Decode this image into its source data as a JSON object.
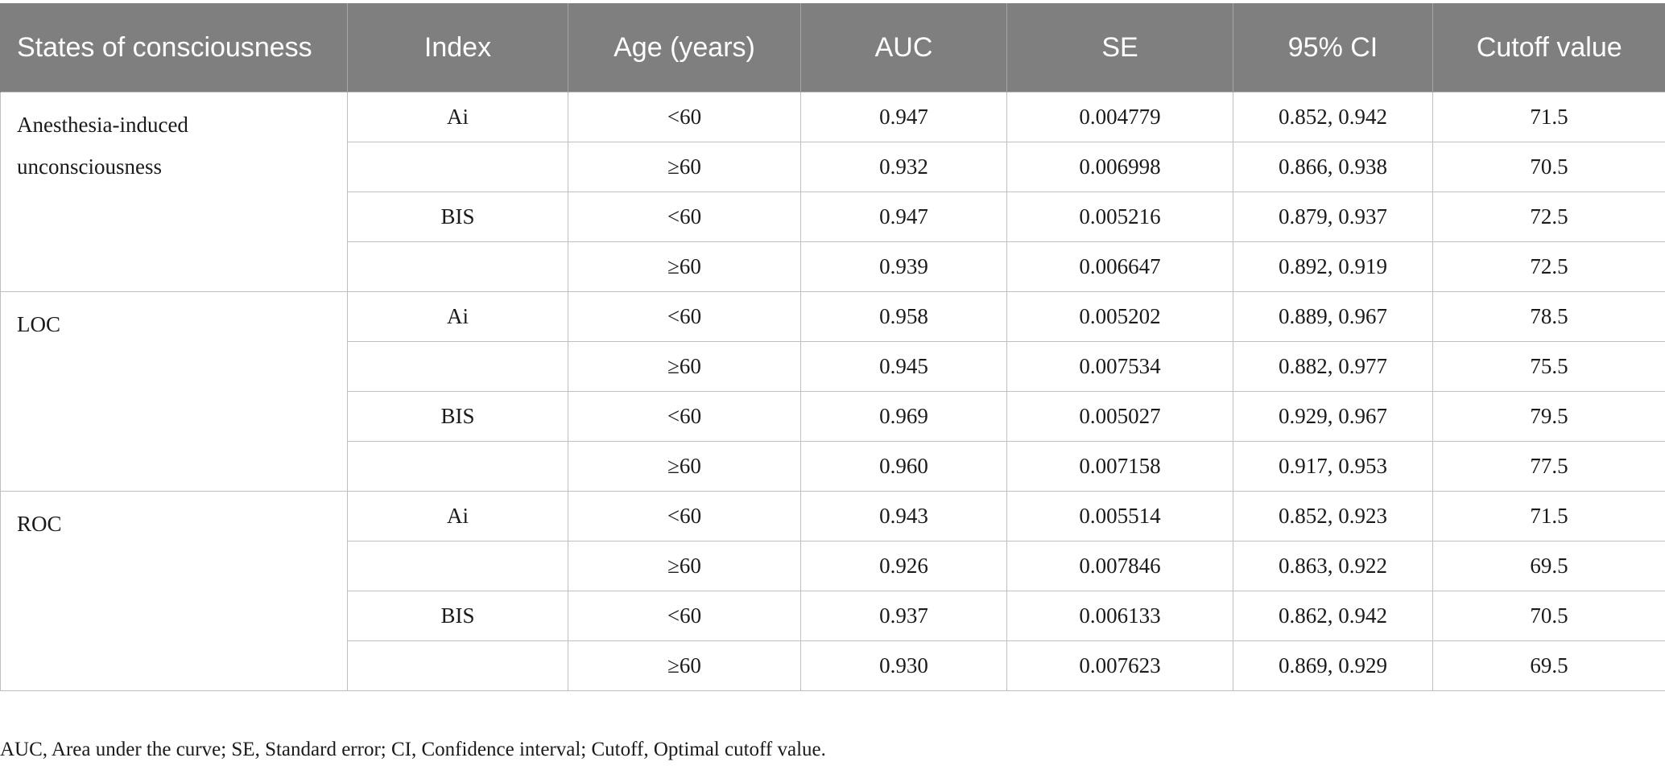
{
  "headers": [
    "States of consciousness",
    "Index",
    "Age (years)",
    "AUC",
    "SE",
    "95% CI",
    "Cutoff value"
  ],
  "groups": [
    {
      "state": "Anesthesia-induced unconsciousness",
      "rows": [
        {
          "index": "Ai",
          "age": "<60",
          "auc": "0.947",
          "se": "0.004779",
          "ci": "0.852, 0.942",
          "cutoff": "71.5"
        },
        {
          "index": "",
          "age": "≥60",
          "auc": "0.932",
          "se": "0.006998",
          "ci": "0.866, 0.938",
          "cutoff": "70.5"
        },
        {
          "index": "BIS",
          "age": "<60",
          "auc": "0.947",
          "se": "0.005216",
          "ci": "0.879, 0.937",
          "cutoff": "72.5"
        },
        {
          "index": "",
          "age": "≥60",
          "auc": "0.939",
          "se": "0.006647",
          "ci": "0.892, 0.919",
          "cutoff": "72.5"
        }
      ]
    },
    {
      "state": "LOC",
      "rows": [
        {
          "index": "Ai",
          "age": "<60",
          "auc": "0.958",
          "se": "0.005202",
          "ci": "0.889, 0.967",
          "cutoff": "78.5"
        },
        {
          "index": "",
          "age": "≥60",
          "auc": "0.945",
          "se": "0.007534",
          "ci": "0.882, 0.977",
          "cutoff": "75.5"
        },
        {
          "index": "BIS",
          "age": "<60",
          "auc": "0.969",
          "se": "0.005027",
          "ci": "0.929, 0.967",
          "cutoff": "79.5"
        },
        {
          "index": "",
          "age": "≥60",
          "auc": "0.960",
          "se": "0.007158",
          "ci": "0.917, 0.953",
          "cutoff": "77.5"
        }
      ]
    },
    {
      "state": "ROC",
      "rows": [
        {
          "index": "Ai",
          "age": "<60",
          "auc": "0.943",
          "se": "0.005514",
          "ci": "0.852, 0.923",
          "cutoff": "71.5"
        },
        {
          "index": "",
          "age": "≥60",
          "auc": "0.926",
          "se": "0.007846",
          "ci": "0.863, 0.922",
          "cutoff": "69.5"
        },
        {
          "index": "BIS",
          "age": "<60",
          "auc": "0.937",
          "se": "0.006133",
          "ci": "0.862, 0.942",
          "cutoff": "70.5"
        },
        {
          "index": "",
          "age": "≥60",
          "auc": "0.930",
          "se": "0.007623",
          "ci": "0.869, 0.929",
          "cutoff": "69.5"
        }
      ]
    }
  ],
  "footnote": "AUC, Area under the curve; SE, Standard error; CI, Confidence interval; Cutoff, Optimal cutoff value."
}
